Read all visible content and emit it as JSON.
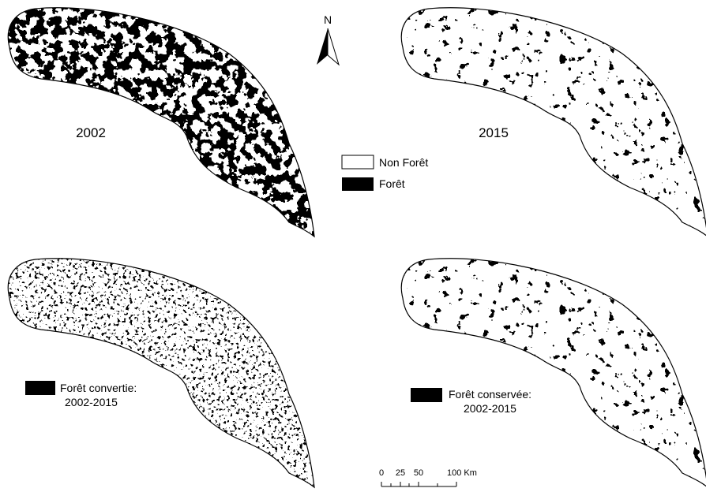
{
  "panels": [
    {
      "label": "2002"
    },
    {
      "label": "2015"
    }
  ],
  "north": "N",
  "legend": {
    "non_forest": "Non Forêt",
    "forest": "Forêt"
  },
  "converted": {
    "title": "Forêt convertie:",
    "period": "2002-2015"
  },
  "conserved": {
    "title": "Forêt conservée:",
    "period": "2002-2015"
  },
  "scale_bar": [
    "0",
    "25",
    "50",
    "100 Km"
  ]
}
